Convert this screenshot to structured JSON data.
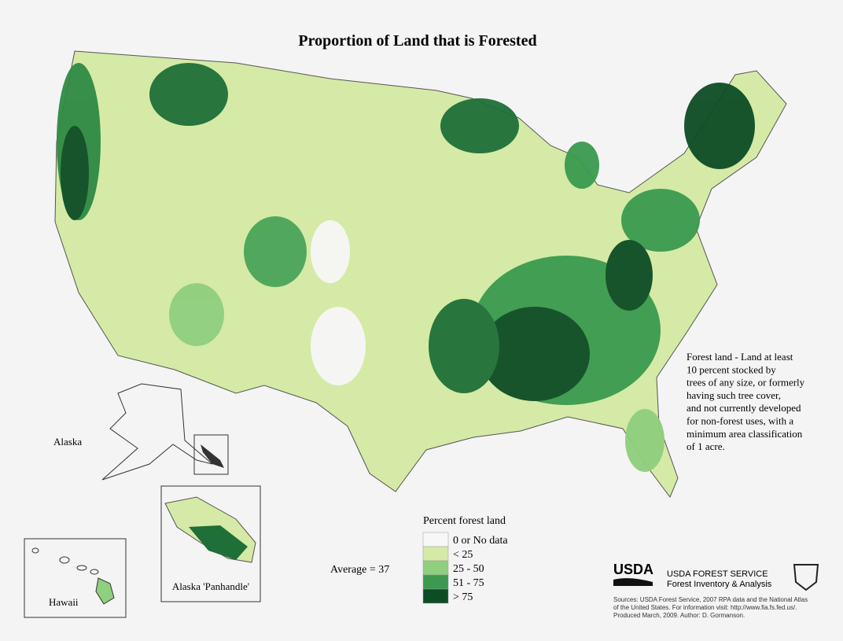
{
  "title": "Proportion of Land that is Forested",
  "legend": {
    "title": "Percent forest land",
    "items": [
      {
        "label": "0 or No data",
        "color": "#f7f7f7"
      },
      {
        "label": "< 25",
        "color": "#d5eaa6"
      },
      {
        "label": "25 - 50",
        "color": "#8fcf7e"
      },
      {
        "label": "51 - 75",
        "color": "#3b9a4f"
      },
      {
        "label": "> 75",
        "color": "#0d4d25"
      }
    ]
  },
  "average": "Average = 37",
  "note": [
    "Forest land - Land at least",
    "10 percent stocked by",
    "trees of any size, or formerly",
    "having such tree cover,",
    "and not currently developed",
    "for non-forest uses, with a",
    "minimum area classification",
    " of 1 acre."
  ],
  "insets": {
    "alaska": "Alaska",
    "hawaii": "Hawaii",
    "panhandle": "Alaska 'Panhandle'"
  },
  "agency": {
    "logo": "USDA",
    "name": "USDA FOREST SERVICE",
    "program": "Forest Inventory & Analysis"
  },
  "sources": [
    "Sources: USDA Forest Service, 2007 RPA data and the National Atlas",
    "of the United States. For information visit:  http://www.fia.fs.fed.us/.",
    "Produced March, 2009. Author: D. Gormanson."
  ]
}
